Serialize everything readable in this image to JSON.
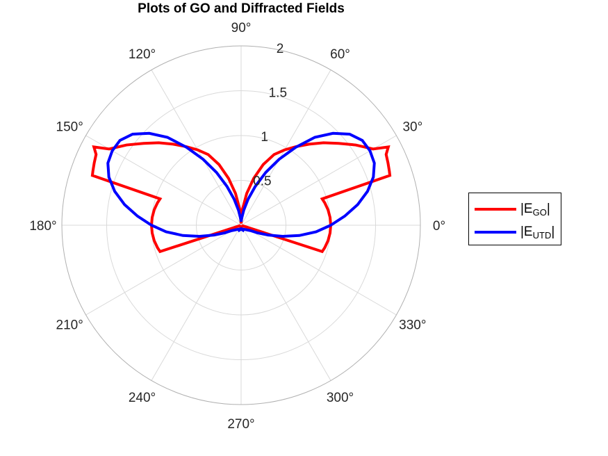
{
  "chart_data": {
    "type": "polar-line",
    "title": "Plots of GO and Diffracted Fields",
    "angle_ticks": [
      "0°",
      "30°",
      "60°",
      "90°",
      "120°",
      "150°",
      "180°",
      "210°",
      "240°",
      "270°",
      "300°",
      "330°"
    ],
    "angle_tick_values_deg": [
      0,
      30,
      60,
      90,
      120,
      150,
      180,
      210,
      240,
      270,
      300,
      330
    ],
    "r_ticks": [
      "0.5",
      "1",
      "1.5",
      "2"
    ],
    "r_tick_values": [
      0.5,
      1,
      1.5,
      2
    ],
    "rlim": [
      0,
      2
    ],
    "grid": true,
    "legend_position": "right",
    "colors": {
      "grid": "#d9d9d9",
      "axis": "#b0b0b0"
    },
    "series": [
      {
        "name": "|E_GO|",
        "label_main": "|E",
        "label_sub": "GO",
        "label_end": "|",
        "color": "#ff0000",
        "points": [
          [
            0,
            1.0
          ],
          [
            5,
            0.996
          ],
          [
            10,
            0.985
          ],
          [
            15,
            0.966
          ],
          [
            18,
            0.951
          ],
          [
            18.5,
            1.75
          ],
          [
            20,
            1.76
          ],
          [
            23,
            1.78
          ],
          [
            26,
            1.8
          ],
          [
            28,
            1.86
          ],
          [
            30,
            1.7
          ],
          [
            35,
            1.56
          ],
          [
            40,
            1.42
          ],
          [
            45,
            1.3
          ],
          [
            50,
            1.18
          ],
          [
            55,
            1.07
          ],
          [
            60,
            0.97
          ],
          [
            65,
            0.87
          ],
          [
            70,
            0.72
          ],
          [
            75,
            0.54
          ],
          [
            80,
            0.36
          ],
          [
            85,
            0.18
          ],
          [
            90,
            0.02
          ],
          [
            95,
            0.18
          ],
          [
            100,
            0.36
          ],
          [
            105,
            0.54
          ],
          [
            110,
            0.72
          ],
          [
            115,
            0.87
          ],
          [
            120,
            0.97
          ],
          [
            125,
            1.07
          ],
          [
            130,
            1.18
          ],
          [
            135,
            1.3
          ],
          [
            140,
            1.42
          ],
          [
            145,
            1.56
          ],
          [
            150,
            1.7
          ],
          [
            152,
            1.86
          ],
          [
            154,
            1.8
          ],
          [
            157,
            1.78
          ],
          [
            160,
            1.76
          ],
          [
            161.5,
            1.75
          ],
          [
            162,
            0.951
          ],
          [
            165,
            0.966
          ],
          [
            170,
            0.985
          ],
          [
            175,
            0.996
          ],
          [
            180,
            1.0
          ],
          [
            185,
            0.996
          ],
          [
            190,
            0.985
          ],
          [
            195,
            0.966
          ],
          [
            198,
            0.951
          ],
          [
            198.5,
            0.02
          ],
          [
            270,
            0.02
          ],
          [
            341.5,
            0.02
          ],
          [
            342,
            0.951
          ],
          [
            345,
            0.966
          ],
          [
            350,
            0.985
          ],
          [
            355,
            0.996
          ],
          [
            360,
            1.0
          ]
        ]
      },
      {
        "name": "|E_UTD|",
        "label_main": "|E",
        "label_sub": "UTD",
        "label_end": "|",
        "color": "#0000ff",
        "points": [
          [
            0,
            1.0
          ],
          [
            5,
            1.16
          ],
          [
            10,
            1.32
          ],
          [
            15,
            1.46
          ],
          [
            20,
            1.57
          ],
          [
            25,
            1.64
          ],
          [
            30,
            1.66
          ],
          [
            35,
            1.65
          ],
          [
            40,
            1.58
          ],
          [
            45,
            1.45
          ],
          [
            50,
            1.28
          ],
          [
            55,
            1.06
          ],
          [
            60,
            0.85
          ],
          [
            65,
            0.65
          ],
          [
            70,
            0.46
          ],
          [
            75,
            0.3
          ],
          [
            80,
            0.17
          ],
          [
            85,
            0.08
          ],
          [
            90,
            0.04
          ],
          [
            95,
            0.08
          ],
          [
            100,
            0.17
          ],
          [
            105,
            0.3
          ],
          [
            110,
            0.46
          ],
          [
            115,
            0.65
          ],
          [
            120,
            0.85
          ],
          [
            125,
            1.06
          ],
          [
            130,
            1.28
          ],
          [
            135,
            1.45
          ],
          [
            140,
            1.58
          ],
          [
            145,
            1.65
          ],
          [
            150,
            1.66
          ],
          [
            155,
            1.64
          ],
          [
            160,
            1.57
          ],
          [
            165,
            1.46
          ],
          [
            170,
            1.32
          ],
          [
            175,
            1.16
          ],
          [
            180,
            1.0
          ],
          [
            185,
            0.84
          ],
          [
            190,
            0.66
          ],
          [
            195,
            0.48
          ],
          [
            200,
            0.32
          ],
          [
            205,
            0.2
          ],
          [
            210,
            0.12
          ],
          [
            220,
            0.08
          ],
          [
            230,
            0.06
          ],
          [
            240,
            0.05
          ],
          [
            250,
            0.06
          ],
          [
            260,
            0.05
          ],
          [
            270,
            0.04
          ],
          [
            280,
            0.05
          ],
          [
            290,
            0.06
          ],
          [
            300,
            0.05
          ],
          [
            310,
            0.06
          ],
          [
            320,
            0.08
          ],
          [
            330,
            0.12
          ],
          [
            335,
            0.2
          ],
          [
            340,
            0.32
          ],
          [
            345,
            0.48
          ],
          [
            350,
            0.66
          ],
          [
            355,
            0.84
          ],
          [
            360,
            1.0
          ]
        ]
      }
    ]
  }
}
